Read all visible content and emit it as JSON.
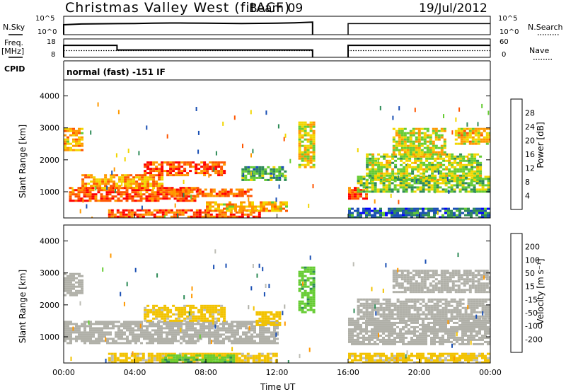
{
  "header": {
    "station": "Christmas Valley West (fitACF)",
    "beam": "Beam 09",
    "date": "19/Jul/2012"
  },
  "top_panels": {
    "nsky_label": "N.Sky",
    "nsearch_label": "N.Search",
    "noise_ticks": [
      "10^5",
      "10^0"
    ],
    "freq_label_1": "Freq.",
    "freq_label_2": "[MHz]",
    "freq_ticks": [
      "18",
      "8"
    ],
    "nave_label": "Nave",
    "nave_ticks": [
      "60",
      "0"
    ],
    "cpid_label": "CPID",
    "cpid_text": "normal (fast) -151 IF"
  },
  "colors": {
    "power_scale": [
      "#0000ff",
      "#1a4fb4",
      "#2e8b57",
      "#66cc33",
      "#f2d600",
      "#ff9900",
      "#ff5500",
      "#ff0000"
    ],
    "velocity_scale": [
      "#0000ff",
      "#1a4fb4",
      "#2e8b57",
      "#66cc33",
      "#b0b0a8",
      "#bdbdb5",
      "#f2c200",
      "#ff9900",
      "#ff5500",
      "#ff0000"
    ]
  },
  "chart_data": [
    {
      "type": "line",
      "panel": "noise",
      "y_scale": "log",
      "ylim": [
        1,
        100000
      ],
      "x_unit": "UT hours",
      "series": [
        {
          "name": "N.Sky",
          "x": [
            0.0,
            1.0,
            2.0,
            3.0,
            4.0,
            5.0,
            6.0,
            7.0,
            8.0,
            9.0,
            10.0,
            11.0,
            12.0,
            13.0,
            14.0
          ],
          "y": [
            500,
            800,
            900,
            1000,
            1100,
            1300,
            1500,
            1400,
            1300,
            1200,
            1100,
            1200,
            1300,
            1600,
            2500
          ]
        },
        {
          "name": "N.Search",
          "x": [
            16.0,
            18.0,
            20.0,
            22.0,
            24.0
          ],
          "y": [
            1000,
            1000,
            1000,
            1000,
            1000
          ]
        }
      ]
    },
    {
      "type": "line",
      "panel": "frequency",
      "left_axis": "Freq. [MHz]",
      "right_axis": "Nave",
      "ylim_freq": [
        8,
        18
      ],
      "ylim_nave": [
        0,
        60
      ],
      "series": [
        {
          "name": "Freq.",
          "x": [
            0.0,
            3.0,
            3.0,
            14.0,
            16.0,
            24.0
          ],
          "y": [
            14.5,
            14.5,
            12.0,
            12.0,
            14.5,
            14.5
          ]
        },
        {
          "name": "Nave",
          "x": [
            0.0,
            14.0,
            16.0,
            24.0
          ],
          "y": [
            22,
            22,
            22,
            22
          ]
        }
      ]
    },
    {
      "type": "heatmap",
      "panel": "power",
      "ylabel": "Slant Range [km]",
      "colorbar_label": "Power [dB]",
      "colorbar_ticks": [
        "28",
        "24",
        "20",
        "16",
        "12",
        "8",
        "4"
      ],
      "xlim_hours": [
        0,
        24
      ],
      "ylim_km": [
        180,
        4500
      ],
      "yticks": [
        "4000",
        "3000",
        "2000",
        "1000"
      ],
      "no_data_gap_hours": [
        14.1,
        16.0
      ],
      "regions": [
        {
          "t": [
            0.3,
            7.5
          ],
          "r": [
            750,
            1150
          ],
          "db": 27
        },
        {
          "t": [
            1.0,
            5.5
          ],
          "r": [
            1150,
            1550
          ],
          "db": 22
        },
        {
          "t": [
            4.5,
            9.0
          ],
          "r": [
            1500,
            1950
          ],
          "db": 26
        },
        {
          "t": [
            6.0,
            10.5
          ],
          "r": [
            850,
            1100
          ],
          "db": 25
        },
        {
          "t": [
            2.5,
            11.0
          ],
          "r": [
            200,
            450
          ],
          "db": 26
        },
        {
          "t": [
            8.0,
            12.5
          ],
          "r": [
            400,
            700
          ],
          "db": 20
        },
        {
          "t": [
            0.0,
            1.0
          ],
          "r": [
            2300,
            3000
          ],
          "db": 20
        },
        {
          "t": [
            10.0,
            12.5
          ],
          "r": [
            1350,
            1800
          ],
          "db": 12
        },
        {
          "t": [
            13.2,
            14.1
          ],
          "r": [
            1800,
            3200
          ],
          "db": 18
        },
        {
          "t": [
            16.0,
            17.0
          ],
          "r": [
            800,
            1150
          ],
          "db": 27
        },
        {
          "t": [
            16.5,
            24.0
          ],
          "r": [
            1000,
            1500
          ],
          "db": 14
        },
        {
          "t": [
            17.0,
            23.5
          ],
          "r": [
            1400,
            2200
          ],
          "db": 16
        },
        {
          "t": [
            18.5,
            21.5
          ],
          "r": [
            2200,
            3000
          ],
          "db": 17
        },
        {
          "t": [
            22.0,
            24.0
          ],
          "r": [
            2500,
            3000
          ],
          "db": 20
        },
        {
          "t": [
            16.0,
            24.0
          ],
          "r": [
            200,
            500
          ],
          "db": 8
        }
      ]
    },
    {
      "type": "heatmap",
      "panel": "velocity",
      "ylabel": "Slant Range [km]",
      "colorbar_label": "Velocity [m s⁻¹]",
      "colorbar_ticks": [
        "200",
        "100",
        "50",
        "15",
        "-15",
        "-50",
        "-100",
        "-200"
      ],
      "xlim_hours": [
        0,
        24
      ],
      "ylim_km": [
        180,
        4500
      ],
      "yticks": [
        "4000",
        "3000",
        "2000",
        "1000"
      ],
      "xticks": [
        "00:00",
        "04:00",
        "08:00",
        "12:00",
        "16:00",
        "20:00",
        "00:00"
      ],
      "xlabel": "Time UT",
      "no_data_gap_hours": [
        14.1,
        16.0
      ],
      "regions": [
        {
          "t": [
            0.0,
            12.0
          ],
          "r": [
            800,
            1500
          ],
          "v": 0
        },
        {
          "t": [
            4.5,
            9.0
          ],
          "r": [
            1500,
            2000
          ],
          "v": -60
        },
        {
          "t": [
            0.0,
            1.0
          ],
          "r": [
            2300,
            3000
          ],
          "v": 0
        },
        {
          "t": [
            2.5,
            12.0
          ],
          "r": [
            200,
            500
          ],
          "v": -60
        },
        {
          "t": [
            5.5,
            9.5
          ],
          "r": [
            250,
            450
          ],
          "v": 40
        },
        {
          "t": [
            10.8,
            12.2
          ],
          "r": [
            1350,
            1800
          ],
          "v": -80
        },
        {
          "t": [
            13.2,
            14.1
          ],
          "r": [
            1800,
            3200
          ],
          "v": 40
        },
        {
          "t": [
            16.0,
            24.0
          ],
          "r": [
            800,
            1600
          ],
          "v": 0
        },
        {
          "t": [
            16.5,
            24.0
          ],
          "r": [
            1600,
            2200
          ],
          "v": 0
        },
        {
          "t": [
            18.5,
            24.0
          ],
          "r": [
            2400,
            3100
          ],
          "v": 0
        },
        {
          "t": [
            16.0,
            24.0
          ],
          "r": [
            200,
            500
          ],
          "v": -60
        }
      ]
    }
  ]
}
